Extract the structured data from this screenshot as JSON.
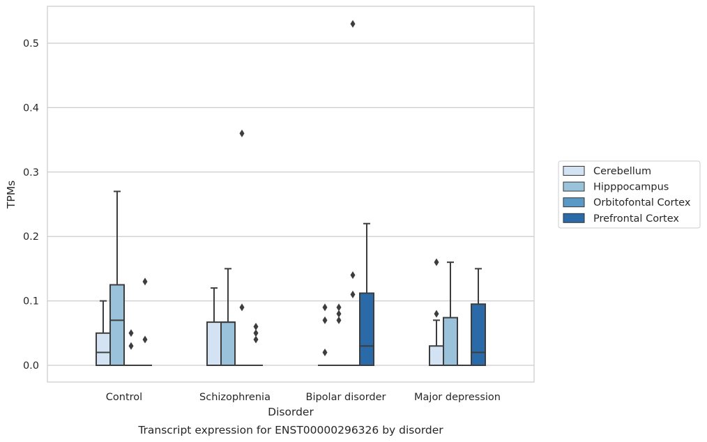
{
  "chart_data": {
    "type": "box",
    "title": "",
    "caption": "Transcript expression for ENST00000296326 by disorder",
    "xlabel": "Disorder",
    "ylabel": "TPMs",
    "ylim": [
      -0.025,
      0.558
    ],
    "yticks": [
      0.0,
      0.1,
      0.2,
      0.3,
      0.4,
      0.5
    ],
    "ytick_labels": [
      "0.0",
      "0.1",
      "0.2",
      "0.3",
      "0.4",
      "0.5"
    ],
    "grid": true,
    "legend_position": "right",
    "categories": [
      "Control",
      "Schizophrenia",
      "Bipolar disorder",
      "Major depression"
    ],
    "series": [
      {
        "name": "Cerebellum",
        "color": "#d4e3f3",
        "boxes": [
          {
            "q1": 0.0,
            "median": 0.02,
            "q3": 0.05,
            "whisker_low": 0.0,
            "whisker_high": 0.1,
            "outliers": []
          },
          {
            "q1": 0.0,
            "median": 0.0,
            "q3": 0.067,
            "whisker_low": 0.0,
            "whisker_high": 0.12,
            "outliers": []
          },
          {
            "q1": 0.0,
            "median": 0.0,
            "q3": 0.0,
            "whisker_low": 0.0,
            "whisker_high": 0.0,
            "outliers": [
              0.02,
              0.07,
              0.09
            ]
          },
          {
            "q1": 0.0,
            "median": 0.0,
            "q3": 0.03,
            "whisker_low": 0.0,
            "whisker_high": 0.07,
            "outliers": [
              0.08,
              0.16
            ]
          }
        ]
      },
      {
        "name": "Hipppocampus",
        "color": "#9ac3db",
        "boxes": [
          {
            "q1": 0.0,
            "median": 0.07,
            "q3": 0.125,
            "whisker_low": 0.0,
            "whisker_high": 0.27,
            "outliers": []
          },
          {
            "q1": 0.0,
            "median": 0.067,
            "q3": 0.067,
            "whisker_low": 0.0,
            "whisker_high": 0.15,
            "outliers": []
          },
          {
            "q1": 0.0,
            "median": 0.0,
            "q3": 0.0,
            "whisker_low": 0.0,
            "whisker_high": 0.0,
            "outliers": [
              0.07,
              0.08,
              0.09
            ]
          },
          {
            "q1": 0.0,
            "median": 0.0,
            "q3": 0.074,
            "whisker_low": 0.0,
            "whisker_high": 0.16,
            "outliers": []
          }
        ]
      },
      {
        "name": "Orbitofontal Cortex",
        "color": "#5a98c6",
        "boxes": [
          {
            "q1": 0.0,
            "median": 0.0,
            "q3": 0.0,
            "whisker_low": 0.0,
            "whisker_high": 0.0,
            "outliers": [
              0.03,
              0.05
            ]
          },
          {
            "q1": 0.0,
            "median": 0.0,
            "q3": 0.0,
            "whisker_low": 0.0,
            "whisker_high": 0.0,
            "outliers": [
              0.09,
              0.36
            ]
          },
          {
            "q1": 0.0,
            "median": 0.0,
            "q3": 0.0,
            "whisker_low": 0.0,
            "whisker_high": 0.0,
            "outliers": [
              0.11,
              0.14,
              0.53
            ]
          },
          {
            "q1": 0.0,
            "median": 0.0,
            "q3": 0.0,
            "whisker_low": 0.0,
            "whisker_high": 0.0,
            "outliers": []
          }
        ]
      },
      {
        "name": "Prefrontal Cortex",
        "color": "#2b6aa8",
        "boxes": [
          {
            "q1": 0.0,
            "median": 0.0,
            "q3": 0.0,
            "whisker_low": 0.0,
            "whisker_high": 0.0,
            "outliers": [
              0.04,
              0.13
            ]
          },
          {
            "q1": 0.0,
            "median": 0.0,
            "q3": 0.0,
            "whisker_low": 0.0,
            "whisker_high": 0.0,
            "outliers": [
              0.04,
              0.05,
              0.06
            ]
          },
          {
            "q1": 0.0,
            "median": 0.03,
            "q3": 0.112,
            "whisker_low": 0.0,
            "whisker_high": 0.22,
            "outliers": []
          },
          {
            "q1": 0.0,
            "median": 0.02,
            "q3": 0.095,
            "whisker_low": 0.0,
            "whisker_high": 0.15,
            "outliers": []
          }
        ]
      }
    ]
  }
}
